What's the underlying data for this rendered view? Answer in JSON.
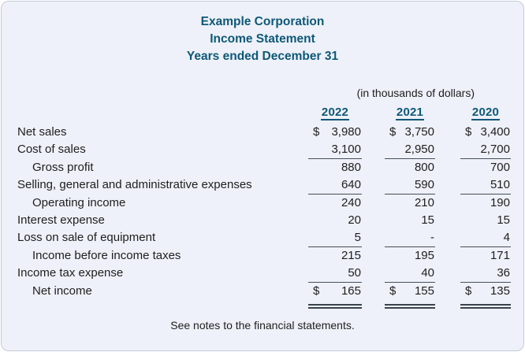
{
  "header": {
    "company": "Example Corporation",
    "statement": "Income Statement",
    "period": "Years ended December 31",
    "units_note": "(in thousands of dollars)"
  },
  "colors": {
    "heading_teal": "#0e5878",
    "card_background": "#eef1f9",
    "card_border": "#c6cbd7",
    "rule": "#454e59"
  },
  "statement": {
    "years": [
      "2022",
      "2021",
      "2020"
    ],
    "rows": [
      {
        "label": "Net sales",
        "dollar": "$",
        "values": [
          "3,980",
          "3,750",
          "3,400"
        ],
        "indent": false,
        "underline": "none"
      },
      {
        "label": "Cost of sales",
        "dollar": "",
        "values": [
          "3,100",
          "2,950",
          "2,700"
        ],
        "indent": false,
        "underline": "single"
      },
      {
        "label": "Gross profit",
        "dollar": "",
        "values": [
          "880",
          "800",
          "700"
        ],
        "indent": true,
        "underline": "none"
      },
      {
        "label": "Selling, general and administrative expenses",
        "dollar": "",
        "values": [
          "640",
          "590",
          "510"
        ],
        "indent": false,
        "underline": "single"
      },
      {
        "label": "Operating income",
        "dollar": "",
        "values": [
          "240",
          "210",
          "190"
        ],
        "indent": true,
        "underline": "none"
      },
      {
        "label": "Interest expense",
        "dollar": "",
        "values": [
          "20",
          "15",
          "15"
        ],
        "indent": false,
        "underline": "none"
      },
      {
        "label": "Loss on sale of equipment",
        "dollar": "",
        "values": [
          "5",
          "-",
          "4"
        ],
        "indent": false,
        "underline": "single"
      },
      {
        "label": "Income before income taxes",
        "dollar": "",
        "values": [
          "215",
          "195",
          "171"
        ],
        "indent": true,
        "underline": "none"
      },
      {
        "label": "Income tax expense",
        "dollar": "",
        "values": [
          "50",
          "40",
          "36"
        ],
        "indent": false,
        "underline": "single"
      },
      {
        "label": "Net income",
        "dollar": "$",
        "values": [
          "165",
          "155",
          "135"
        ],
        "indent": true,
        "underline": "double"
      }
    ]
  },
  "footer": {
    "note": "See notes to the financial statements."
  }
}
